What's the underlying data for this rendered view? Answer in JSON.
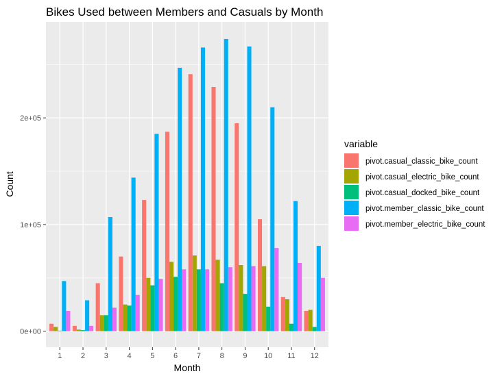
{
  "chart_data": {
    "type": "bar",
    "title": "Bikes Used between Members and Casuals by Month",
    "xlabel": "Month",
    "ylabel": "Count",
    "categories": [
      "1",
      "2",
      "3",
      "4",
      "5",
      "6",
      "7",
      "8",
      "9",
      "10",
      "11",
      "12"
    ],
    "ylim": [
      -15000,
      290000
    ],
    "yticks": [
      0,
      100000,
      200000
    ],
    "ytick_labels": [
      "0e+00",
      "1e+05",
      "2e+05"
    ],
    "legend_title": "variable",
    "series": [
      {
        "name": "pivot.casual_classic_bike_count",
        "color": "#F8766D",
        "values": [
          7000,
          5000,
          45000,
          70000,
          123000,
          187000,
          241000,
          229000,
          195000,
          105000,
          32000,
          19000
        ]
      },
      {
        "name": "pivot.casual_electric_bike_count",
        "color": "#A3A500",
        "values": [
          4000,
          1500,
          15000,
          25000,
          50000,
          65000,
          71000,
          67000,
          62000,
          61000,
          30000,
          20000
        ]
      },
      {
        "name": "pivot.casual_docked_bike_count",
        "color": "#00BF7D",
        "values": [
          500,
          1000,
          15000,
          24000,
          43000,
          51000,
          58000,
          45000,
          35000,
          23000,
          7000,
          4000
        ]
      },
      {
        "name": "pivot.member_classic_bike_count",
        "color": "#00B0F6",
        "values": [
          47000,
          29000,
          107000,
          144000,
          185000,
          247000,
          266000,
          274000,
          267000,
          210000,
          122000,
          80000
        ]
      },
      {
        "name": "pivot.member_electric_bike_count",
        "color": "#E76BF3",
        "values": [
          19000,
          5000,
          22000,
          34000,
          49000,
          58000,
          58000,
          60000,
          61000,
          78000,
          64000,
          50000
        ]
      }
    ]
  }
}
